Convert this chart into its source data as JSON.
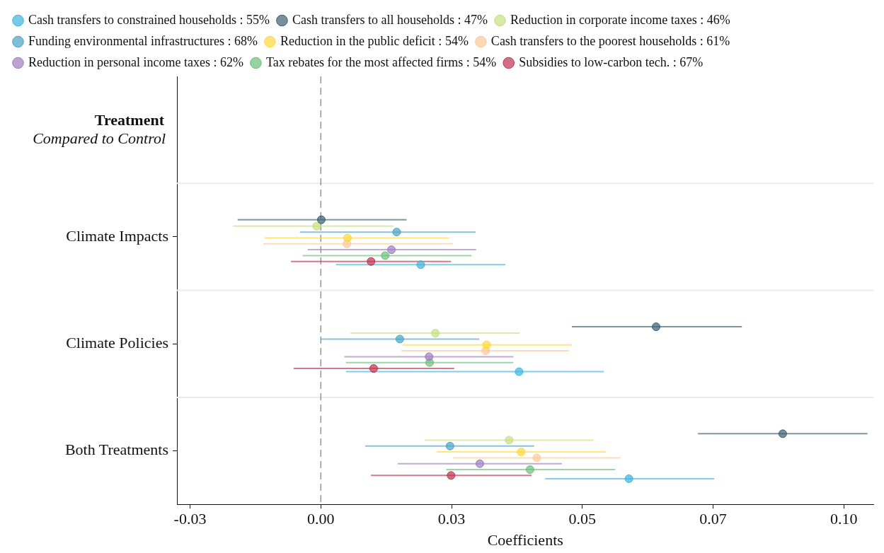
{
  "chart_data": {
    "type": "scatter",
    "orientation": "horizontal",
    "xlabel": "Coefficients",
    "ylabel": "Treatment",
    "annotations": [
      "Compared to Control"
    ],
    "categories": [
      "Climate Impacts",
      "Climate Policies",
      "Both Treatments"
    ],
    "xlim": [
      -0.0275,
      0.1057
    ],
    "xticks": [
      {
        "value": -0.025,
        "label": "-0.03"
      },
      {
        "value": 0,
        "label": "0.00"
      },
      {
        "value": 0.025,
        "label": "0.03"
      },
      {
        "value": 0.05,
        "label": "0.05"
      },
      {
        "value": 0.075,
        "label": "0.07"
      },
      {
        "value": 0.1,
        "label": "0.10"
      }
    ],
    "grid": "y",
    "legend": "top",
    "marker": "circle",
    "ref_lines": [
      {
        "axis": "x",
        "value": 0,
        "color": "#7f7f7f",
        "line_style": "dashed"
      }
    ],
    "series": [
      {
        "name": "Cash transfers to constrained households : 55%",
        "color": "#3cb4e0",
        "values": [
          0.0191,
          0.0379,
          0.0589
        ],
        "errors": [
          [
            0.0029,
            0.0353
          ],
          [
            0.0048,
            0.0541
          ],
          [
            0.0429,
            0.0752
          ]
        ]
      },
      {
        "name": "Cash transfers to all households : 47%",
        "color": "#3a6070",
        "values": [
          0.0001,
          0.0641,
          0.0883
        ],
        "errors": [
          [
            -0.0159,
            0.0164
          ],
          [
            0.048,
            0.0805
          ],
          [
            0.0721,
            0.1045
          ]
        ]
      },
      {
        "name": "Reduction in corporate income taxes : 46%",
        "color": "#c5e07f",
        "values": [
          -0.0008,
          0.0219,
          0.036
        ],
        "errors": [
          [
            -0.0168,
            0.0139
          ],
          [
            0.0057,
            0.038
          ],
          [
            0.0199,
            0.0521
          ]
        ]
      },
      {
        "name": "Funding environmental infrastructures : 68%",
        "color": "#4aa3c8",
        "values": [
          0.0145,
          0.0151,
          0.0247
        ],
        "errors": [
          [
            -0.004,
            0.0296
          ],
          [
            0,
            0.0303
          ],
          [
            0.0085,
            0.0408
          ]
        ]
      },
      {
        "name": "Reduction in the public deficit : 54%",
        "color": "#ffd93a",
        "values": [
          0.0051,
          0.0317,
          0.0383
        ],
        "errors": [
          [
            -0.0108,
            0.0245
          ],
          [
            0.0156,
            0.048
          ],
          [
            0.0221,
            0.0545
          ]
        ]
      },
      {
        "name": "Cash transfers to the poorest households : 61%",
        "color": "#ffc89a",
        "values": [
          0.005,
          0.0315,
          0.0413
        ],
        "errors": [
          [
            -0.011,
            0.0253
          ],
          [
            0.0154,
            0.0475
          ],
          [
            0.0252,
            0.0573
          ]
        ]
      },
      {
        "name": "Reduction in personal income taxes : 62%",
        "color": "#a07cc0",
        "values": [
          0.0135,
          0.0207,
          0.0304
        ],
        "errors": [
          [
            -0.0025,
            0.0297
          ],
          [
            0.0045,
            0.0368
          ],
          [
            0.0147,
            0.0461
          ]
        ]
      },
      {
        "name": "Tax rebates for the most affected firms : 54%",
        "color": "#6cbf7a",
        "values": [
          0.0123,
          0.0208,
          0.04
        ],
        "errors": [
          [
            -0.0035,
            0.0288
          ],
          [
            0.0048,
            0.0368
          ],
          [
            0.024,
            0.0563
          ]
        ]
      },
      {
        "name": "Subsidies to low-carbon tech. : 67%",
        "color": "#c0304f",
        "values": [
          0.0096,
          0.0101,
          0.0249
        ],
        "errors": [
          [
            -0.0057,
            0.0249
          ],
          [
            -0.0052,
            0.0255
          ],
          [
            0.0096,
            0.0403
          ]
        ]
      }
    ]
  }
}
